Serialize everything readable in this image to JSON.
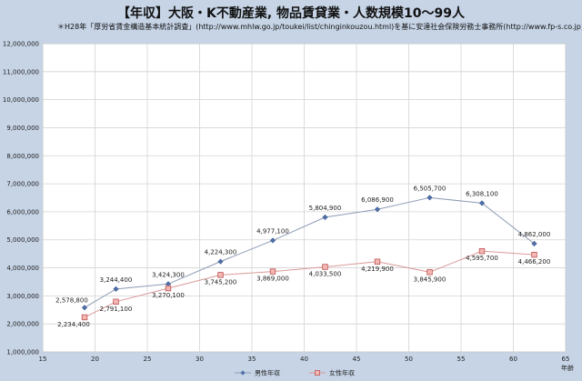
{
  "header": {
    "title": "【年収】大阪・K不動産業, 物品賃貸業・人数規模10～99人",
    "subtitle": "＊H28年「厚労省賃金構造基本統計調査」(http://www.mhlw.go.jp/toukei/list/chinginkouzou.html)を基に安達社会保険労務士事務所(http://www.fp-s.co.jp)が作成"
  },
  "chart_data": {
    "type": "line",
    "xlabel": "年齢",
    "ylabel": "",
    "xlim": [
      15,
      65
    ],
    "ylim": [
      1000000,
      12000000
    ],
    "xticks": [
      15,
      20,
      25,
      30,
      35,
      40,
      45,
      50,
      55,
      60,
      65
    ],
    "yticks": [
      1000000,
      2000000,
      3000000,
      4000000,
      5000000,
      6000000,
      7000000,
      8000000,
      9000000,
      10000000,
      11000000,
      12000000
    ],
    "ytick_labels": [
      "1,000,000",
      "2,000,000",
      "3,000,000",
      "4,000,000",
      "5,000,000",
      "6,000,000",
      "7,000,000",
      "8,000,000",
      "9,000,000",
      "10,000,000",
      "11,000,000",
      "12,000,000"
    ],
    "grid": true,
    "legend_position": "bottom",
    "series": [
      {
        "name": "男性年収",
        "color": "#4f6fa8",
        "marker": "diamond",
        "x": [
          19,
          22,
          27,
          32,
          37,
          42,
          47,
          52,
          57,
          62
        ],
        "values": [
          2578800,
          3244400,
          3424300,
          4224300,
          4977100,
          5804900,
          6086900,
          6505700,
          6308100,
          4862000
        ],
        "labels": [
          "2,578,800",
          "3,244,400",
          "3,424,300",
          "4,224,300",
          "4,977,100",
          "5,804,900",
          "6,086,900",
          "6,505,700",
          "6,308,100",
          "4,862,000"
        ]
      },
      {
        "name": "女性年収",
        "color": "#c0504d",
        "marker": "square",
        "x": [
          19,
          22,
          27,
          32,
          37,
          42,
          47,
          52,
          57,
          62
        ],
        "values": [
          2234400,
          2791100,
          3270100,
          3745200,
          3869000,
          4033500,
          4219900,
          3845900,
          4595700,
          4466200
        ],
        "labels": [
          "2,234,400",
          "2,791,100",
          "3,270,100",
          "3,745,200",
          "3,869,000",
          "4,033,500",
          "4,219,900",
          "3,845,900",
          "4,595,700",
          "4,466,200"
        ]
      }
    ]
  }
}
